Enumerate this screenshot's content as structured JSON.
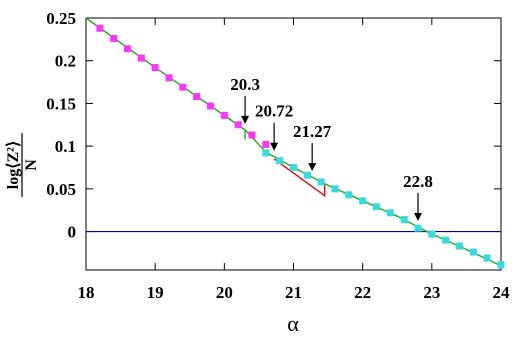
{
  "chart_data": {
    "type": "scatter",
    "xlabel": "α",
    "ylabel": {
      "numerator": "log⟨Z²⟩",
      "denominator": "N"
    },
    "xlim": [
      18,
      24
    ],
    "ylim": [
      -0.045,
      0.25
    ],
    "xticks": [
      18,
      19,
      20,
      21,
      22,
      23,
      24
    ],
    "yticks": [
      0,
      0.05,
      0.1,
      0.15,
      0.2,
      0.25
    ],
    "xtick_labels": [
      "18",
      "19",
      "20",
      "21",
      "22",
      "23",
      "24"
    ],
    "ytick_labels": [
      "0",
      "0.05",
      "0.1",
      "0.15",
      "0.2",
      "0.25"
    ],
    "grid": false,
    "colors": {
      "magenta": "#ff33ff",
      "cyan": "#33dddd",
      "green": "#22aa22",
      "red": "#ee0000",
      "baseline": "#0000aa"
    },
    "series": [
      {
        "marker": "square",
        "color": "magenta",
        "x": [
          18.2,
          18.4,
          18.6,
          18.8,
          19.0,
          19.2,
          19.4,
          19.6,
          19.8,
          20.0,
          20.2,
          20.4,
          20.6
        ],
        "y": [
          0.238,
          0.226,
          0.214,
          0.203,
          0.192,
          0.18,
          0.169,
          0.158,
          0.147,
          0.136,
          0.125,
          0.113,
          0.102
        ]
      },
      {
        "marker": "square",
        "color": "cyan",
        "x": [
          20.6,
          20.8,
          21.0,
          21.2,
          21.4,
          21.6,
          21.8,
          22.0,
          22.2,
          22.4,
          22.6,
          22.8,
          23.0,
          23.2,
          23.4,
          23.6,
          23.8,
          24.0
        ],
        "y": [
          0.092,
          0.083,
          0.075,
          0.066,
          0.058,
          0.05,
          0.043,
          0.036,
          0.029,
          0.022,
          0.014,
          0.004,
          -0.003,
          -0.01,
          -0.017,
          -0.024,
          -0.031,
          -0.039
        ]
      },
      {
        "type": "line",
        "color": "green",
        "x": [
          18.0,
          19.0,
          20.0,
          20.3,
          20.6,
          21.0,
          21.5,
          22.0,
          22.5,
          23.0,
          23.5,
          24.0
        ],
        "y": [
          0.25,
          0.192,
          0.136,
          0.119,
          0.093,
          0.075,
          0.054,
          0.036,
          0.018,
          -0.003,
          -0.021,
          -0.04
        ]
      },
      {
        "type": "line",
        "color": "red",
        "x": [
          20.72,
          21.45,
          21.45
        ],
        "y": [
          0.085,
          0.042,
          0.056
        ]
      },
      {
        "type": "line",
        "color": "green",
        "x": [
          20.3,
          20.3
        ],
        "y": [
          0.108,
          0.118
        ]
      }
    ],
    "baseline_y": 0,
    "annotations": [
      {
        "text": "20.3",
        "x": 20.3
      },
      {
        "text": "20.72",
        "x": 20.72
      },
      {
        "text": "21.27",
        "x": 21.27
      },
      {
        "text": "22.8",
        "x": 22.8
      }
    ]
  }
}
